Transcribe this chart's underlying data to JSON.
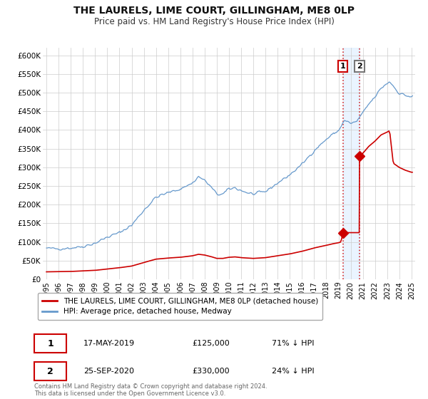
{
  "title": "THE LAURELS, LIME COURT, GILLINGHAM, ME8 0LP",
  "subtitle": "Price paid vs. HM Land Registry's House Price Index (HPI)",
  "title_fontsize": 10,
  "subtitle_fontsize": 8.5,
  "background_color": "#ffffff",
  "plot_bg_color": "#ffffff",
  "grid_color": "#cccccc",
  "red_color": "#cc0000",
  "blue_color": "#6699cc",
  "marker_color": "#cc0000",
  "shade_color": "#ddeeff",
  "ylim": [
    0,
    620000
  ],
  "yticks": [
    0,
    50000,
    100000,
    150000,
    200000,
    250000,
    300000,
    350000,
    400000,
    450000,
    500000,
    550000,
    600000
  ],
  "ytick_labels": [
    "£0",
    "£50K",
    "£100K",
    "£150K",
    "£200K",
    "£250K",
    "£300K",
    "£350K",
    "£400K",
    "£450K",
    "£500K",
    "£550K",
    "£600K"
  ],
  "legend1_label": "THE LAURELS, LIME COURT, GILLINGHAM, ME8 0LP (detached house)",
  "legend2_label": "HPI: Average price, detached house, Medway",
  "transaction1_date": "17-MAY-2019",
  "transaction1_price": "£125,000",
  "transaction1_hpi": "71% ↓ HPI",
  "transaction2_date": "25-SEP-2020",
  "transaction2_price": "£330,000",
  "transaction2_hpi": "24% ↓ HPI",
  "footer": "Contains HM Land Registry data © Crown copyright and database right 2024.\nThis data is licensed under the Open Government Licence v3.0.",
  "sale1_x": 2019.37,
  "sale1_y": 125000,
  "sale2_x": 2020.73,
  "sale2_y": 330000,
  "xlim_left": 1994.7,
  "xlim_right": 2025.3
}
